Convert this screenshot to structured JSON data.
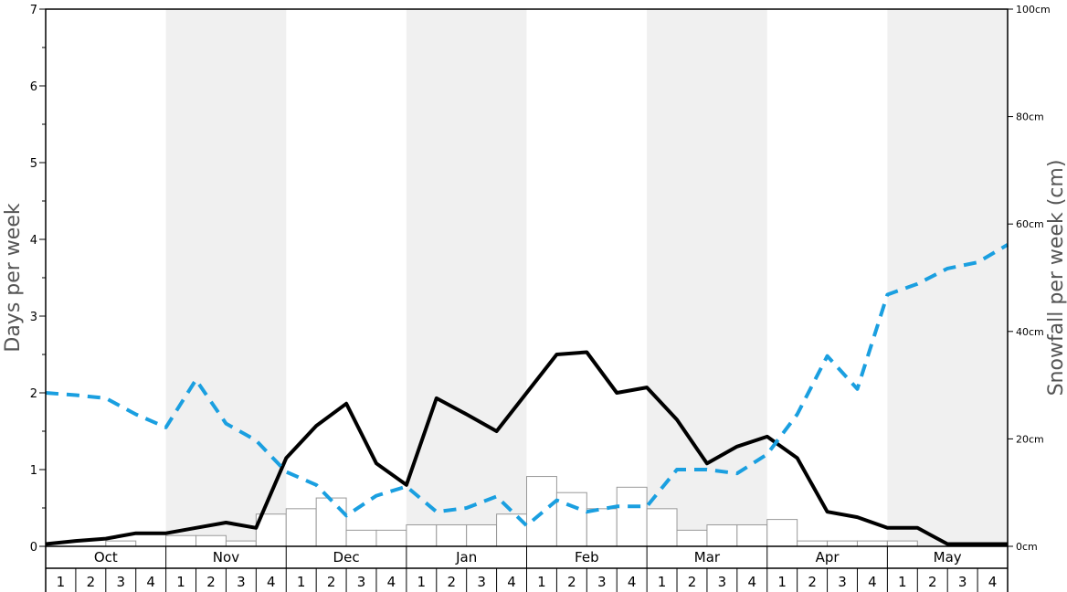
{
  "chart_data": {
    "type": "bar",
    "months": [
      "Oct",
      "Nov",
      "Dec",
      "Jan",
      "Feb",
      "Mar",
      "Apr",
      "May"
    ],
    "week_labels": [
      "1",
      "2",
      "3",
      "4"
    ],
    "left_axis": {
      "label": "Days per week",
      "ylim": [
        0,
        7
      ],
      "ticks": [
        "0",
        "1",
        "2",
        "3",
        "4",
        "5",
        "6",
        "7"
      ]
    },
    "right_axis": {
      "label": "Snowfall per week (cm)",
      "ylim": [
        0,
        100
      ],
      "ticks": [
        "0cm",
        "20cm",
        "40cm",
        "60cm",
        "80cm",
        "100cm"
      ]
    },
    "series": [
      {
        "kind": "bars",
        "axis": "right",
        "color": "#999999",
        "values": [
          0,
          0,
          1,
          0,
          2,
          2,
          1,
          6,
          7,
          9,
          3,
          3,
          4,
          4,
          4,
          6,
          13,
          10,
          7,
          11,
          7,
          3,
          4,
          4,
          5,
          1,
          1,
          1,
          1,
          0,
          0,
          0
        ]
      },
      {
        "kind": "solid-line",
        "axis": "left",
        "color": "#000000",
        "values": [
          0.03,
          0.07,
          0.1,
          0.17,
          0.17,
          0.24,
          0.31,
          0.24,
          1.15,
          1.57,
          1.86,
          1.08,
          0.8,
          1.93,
          1.72,
          1.5,
          2.0,
          2.5,
          2.53,
          2.0,
          2.07,
          1.65,
          1.08,
          1.3,
          1.43,
          1.15,
          0.45,
          0.38,
          0.24,
          0.24,
          0.03,
          0.03,
          0.03
        ]
      },
      {
        "kind": "dashed-line",
        "axis": "left",
        "color": "#1a9fe0",
        "values": [
          2.0,
          1.97,
          1.93,
          1.72,
          1.55,
          2.17,
          1.6,
          1.38,
          0.97,
          0.8,
          0.4,
          0.66,
          0.78,
          0.45,
          0.5,
          0.65,
          0.27,
          0.6,
          0.45,
          0.52,
          0.52,
          1.0,
          1.0,
          0.95,
          1.2,
          1.72,
          2.48,
          2.05,
          3.28,
          3.42,
          3.62,
          3.7,
          3.93
        ]
      }
    ],
    "colors": {
      "shaded_band": "#f0f0f0",
      "bar_fill": "#ffffff",
      "bar_stroke": "#999999",
      "solid_line": "#000000",
      "dashed_line": "#1a9fe0"
    }
  }
}
